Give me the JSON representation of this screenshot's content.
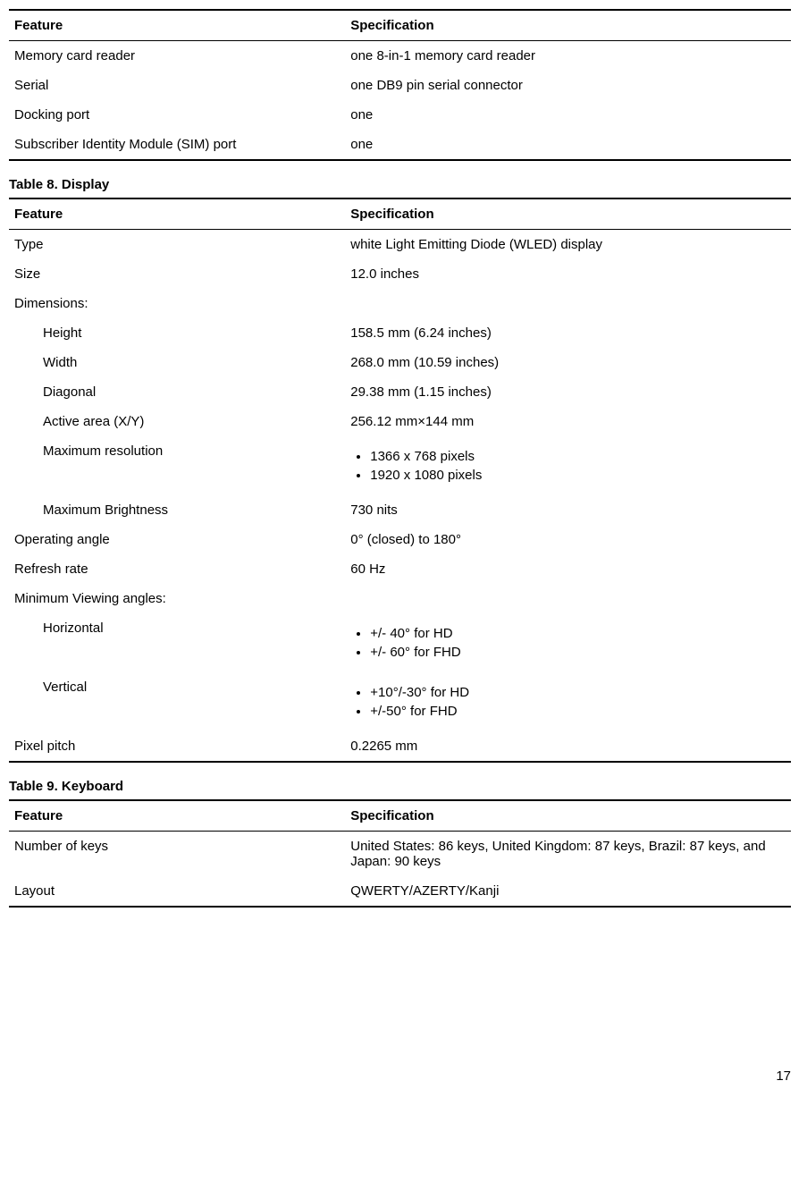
{
  "table7": {
    "headers": {
      "feature": "Feature",
      "spec": "Specification"
    },
    "rows": [
      {
        "feature": "Memory card reader",
        "spec": "one 8-in-1 memory card reader"
      },
      {
        "feature": "Serial",
        "spec": "one DB9 pin serial connector"
      },
      {
        "feature": "Docking port",
        "spec": "one"
      },
      {
        "feature": "Subscriber Identity Module (SIM) port",
        "spec": "one"
      }
    ]
  },
  "table8": {
    "caption": "Table 8. Display",
    "headers": {
      "feature": "Feature",
      "spec": "Specification"
    },
    "type_row": {
      "feature": "Type",
      "spec": "white Light Emitting Diode (WLED) display"
    },
    "size_row": {
      "feature": "Size",
      "spec": "12.0 inches"
    },
    "dimensions_label": "Dimensions:",
    "height_row": {
      "feature": "Height",
      "spec": "158.5 mm (6.24 inches)"
    },
    "width_row": {
      "feature": "Width",
      "spec": "268.0 mm (10.59 inches)"
    },
    "diagonal_row": {
      "feature": "Diagonal",
      "spec": "29.38 mm (1.15 inches)"
    },
    "active_area_row": {
      "feature": "Active area (X/Y)",
      "spec": "256.12 mm×144 mm"
    },
    "max_res_label": "Maximum resolution",
    "max_res_items": {
      "a": "1366 x 768 pixels",
      "b": "1920 x 1080 pixels"
    },
    "max_bright_row": {
      "feature": "Maximum Brightness",
      "spec": "730 nits"
    },
    "op_angle_row": {
      "feature": "Operating angle",
      "spec": "0° (closed) to 180°"
    },
    "refresh_row": {
      "feature": "Refresh rate",
      "spec": "60 Hz"
    },
    "min_view_label": "Minimum Viewing angles:",
    "horizontal_label": "Horizontal",
    "horizontal_items": {
      "a": "+/- 40° for HD",
      "b": "+/- 60° for FHD"
    },
    "vertical_label": "Vertical",
    "vertical_items": {
      "a": "+10°/-30° for HD",
      "b": "+/-50° for FHD"
    },
    "pixel_pitch_row": {
      "feature": "Pixel pitch",
      "spec": "0.2265 mm"
    }
  },
  "table9": {
    "caption": "Table 9. Keyboard",
    "headers": {
      "feature": "Feature",
      "spec": "Specification"
    },
    "keys_row": {
      "feature": "Number of keys",
      "spec": "United States: 86 keys, United Kingdom: 87 keys, Brazil: 87 keys, and Japan: 90 keys"
    },
    "layout_row": {
      "feature": "Layout",
      "spec": "QWERTY/AZERTY/Kanji"
    }
  },
  "page_number": "17"
}
